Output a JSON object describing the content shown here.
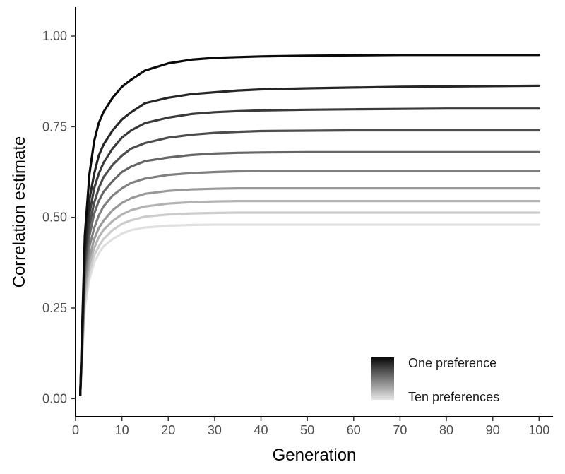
{
  "chart_data": {
    "type": "line",
    "title": "",
    "xlabel": "Generation",
    "ylabel": "Correlation estimate",
    "xlim": [
      0,
      103
    ],
    "ylim": [
      -0.05,
      1.08
    ],
    "xticks": [
      0,
      10,
      20,
      30,
      40,
      50,
      60,
      70,
      80,
      90,
      100
    ],
    "xtick_labels": [
      "0",
      "10",
      "20",
      "30",
      "40",
      "50",
      "60",
      "70",
      "80",
      "90",
      "100"
    ],
    "yticks": [
      0,
      0.25,
      0.5,
      0.75,
      1
    ],
    "ytick_labels": [
      "0.00",
      "0.25",
      "0.50",
      "0.75",
      "1.00"
    ],
    "grid": false,
    "legend": {
      "position": "bottom-right",
      "type": "gradient",
      "top_label": "One preference",
      "bottom_label": "Ten preferences",
      "colors": [
        "#0a0a0a",
        "#e6e6e6"
      ]
    },
    "x": [
      1,
      2,
      3,
      4,
      5,
      6,
      8,
      10,
      12,
      15,
      20,
      25,
      30,
      35,
      40,
      50,
      60,
      70,
      80,
      90,
      100
    ],
    "series": [
      {
        "color": "#0a0a0a",
        "values": [
          0.01,
          0.45,
          0.62,
          0.71,
          0.76,
          0.79,
          0.83,
          0.86,
          0.88,
          0.905,
          0.925,
          0.935,
          0.94,
          0.942,
          0.944,
          0.946,
          0.947,
          0.948,
          0.948,
          0.948,
          0.948
        ]
      },
      {
        "color": "#262626",
        "values": [
          0.01,
          0.41,
          0.55,
          0.62,
          0.67,
          0.7,
          0.74,
          0.77,
          0.79,
          0.815,
          0.83,
          0.84,
          0.845,
          0.85,
          0.853,
          0.856,
          0.858,
          0.86,
          0.861,
          0.862,
          0.863
        ]
      },
      {
        "color": "#3a3a3a",
        "values": [
          0.01,
          0.39,
          0.51,
          0.58,
          0.62,
          0.65,
          0.69,
          0.72,
          0.74,
          0.76,
          0.775,
          0.785,
          0.79,
          0.793,
          0.795,
          0.797,
          0.798,
          0.799,
          0.8,
          0.8,
          0.8
        ]
      },
      {
        "color": "#4d4d4d",
        "values": [
          0.01,
          0.37,
          0.48,
          0.54,
          0.58,
          0.61,
          0.645,
          0.67,
          0.69,
          0.705,
          0.72,
          0.728,
          0.733,
          0.736,
          0.738,
          0.739,
          0.74,
          0.74,
          0.74,
          0.74,
          0.74
        ]
      },
      {
        "color": "#666666",
        "values": [
          0.01,
          0.35,
          0.45,
          0.51,
          0.545,
          0.57,
          0.6,
          0.625,
          0.64,
          0.655,
          0.665,
          0.672,
          0.676,
          0.678,
          0.679,
          0.68,
          0.68,
          0.68,
          0.68,
          0.68,
          0.68
        ]
      },
      {
        "color": "#808080",
        "values": [
          0.01,
          0.33,
          0.42,
          0.47,
          0.505,
          0.53,
          0.56,
          0.58,
          0.595,
          0.607,
          0.617,
          0.622,
          0.625,
          0.627,
          0.628,
          0.628,
          0.628,
          0.628,
          0.628,
          0.628,
          0.628
        ]
      },
      {
        "color": "#999999",
        "values": [
          0.01,
          0.31,
          0.39,
          0.44,
          0.47,
          0.49,
          0.52,
          0.54,
          0.553,
          0.565,
          0.573,
          0.577,
          0.579,
          0.58,
          0.58,
          0.58,
          0.58,
          0.58,
          0.58,
          0.58,
          0.58
        ]
      },
      {
        "color": "#b3b3b3",
        "values": [
          0.01,
          0.29,
          0.37,
          0.415,
          0.445,
          0.465,
          0.49,
          0.508,
          0.52,
          0.53,
          0.538,
          0.542,
          0.544,
          0.545,
          0.545,
          0.545,
          0.545,
          0.545,
          0.545,
          0.545,
          0.545
        ]
      },
      {
        "color": "#cccccc",
        "values": [
          0.01,
          0.27,
          0.35,
          0.395,
          0.42,
          0.44,
          0.465,
          0.482,
          0.492,
          0.502,
          0.508,
          0.511,
          0.512,
          0.513,
          0.513,
          0.513,
          0.513,
          0.513,
          0.513,
          0.513,
          0.513
        ]
      },
      {
        "color": "#e0e0e0",
        "values": [
          0.01,
          0.25,
          0.33,
          0.375,
          0.4,
          0.42,
          0.44,
          0.455,
          0.465,
          0.472,
          0.477,
          0.479,
          0.48,
          0.48,
          0.48,
          0.48,
          0.48,
          0.48,
          0.48,
          0.48,
          0.48
        ]
      }
    ]
  }
}
